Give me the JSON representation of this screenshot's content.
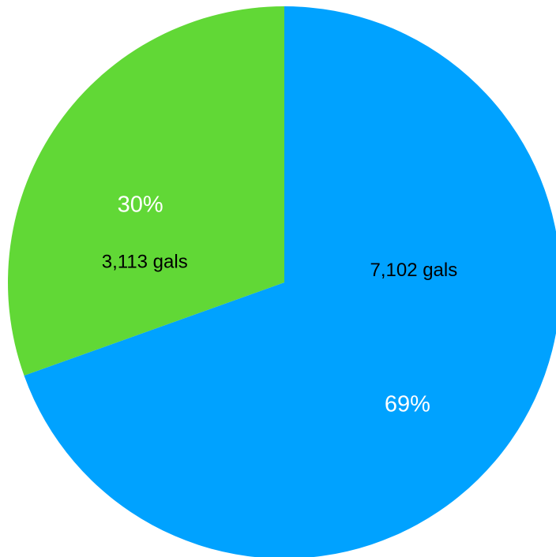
{
  "chart_data": {
    "type": "pie",
    "title": "",
    "slices": [
      {
        "value": 7102,
        "value_label": "7,102 gals",
        "percent_label": "69%",
        "color": "#00a2ff"
      },
      {
        "value": 3113,
        "value_label": "3,113 gals",
        "percent_label": "30%",
        "color": "#61d836"
      }
    ],
    "start": "12 o'clock",
    "direction": "clockwise",
    "percent_label_color": "#ffffff",
    "value_label_color": "#000000"
  }
}
